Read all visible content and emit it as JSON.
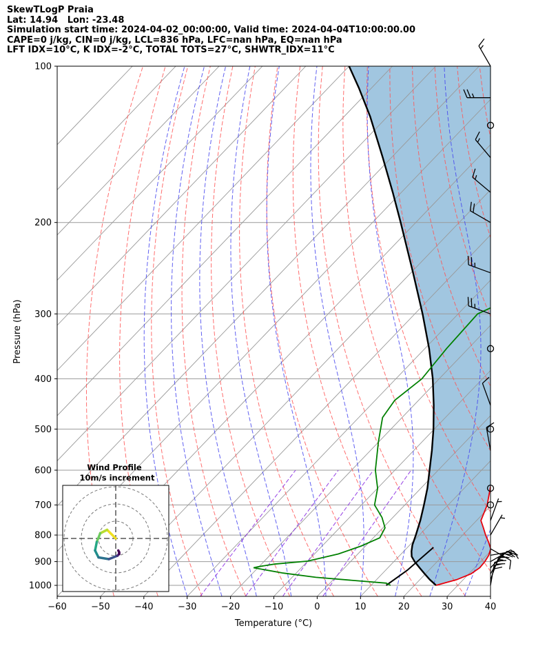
{
  "header": {
    "line1": "SkewTLogP Praia",
    "line2": "Lat: 14.94   Lon: -23.48",
    "line3": "Simulation start time: 2024-04-02_00:00:00, Valid time: 2024-04-04T10:00:00.00",
    "line4": "CAPE=0 j/kg, CIN=0 j/kg, LCL=836 hPa, LFC=nan hPa, EQ=nan hPa",
    "line5": "LFT IDX=10°C, K IDX=-2°C, TOTAL TOTS=27°C, SHWTR_IDX=11°C"
  },
  "chart_data": {
    "type": "line",
    "title": "SkewTLogP Praia",
    "xlabel": "Temperature (°C)",
    "ylabel": "Pressure (hPa)",
    "xlim": [
      -60,
      40
    ],
    "ylim": [
      1050,
      100
    ],
    "y_scale": "log",
    "x_ticks": [
      "−60",
      "−50",
      "−40",
      "−30",
      "−20",
      "−10",
      "0",
      "10",
      "20",
      "30",
      "40"
    ],
    "y_ticks": [
      "100",
      "200",
      "300",
      "400",
      "500",
      "600",
      "700",
      "800",
      "900",
      "1000"
    ],
    "grid": true,
    "colors": {
      "temperature": "#e8000b",
      "dewpoint": "#008000",
      "parcel": "#000000",
      "cape_shade": "#8ab8d8",
      "dry_adiabat": "#ff5555",
      "moist_adiabat": "#4444ee",
      "mixing_ratio": "#8a2be2",
      "isotherm": "#999999"
    },
    "series": [
      {
        "name": "temperature",
        "points": [
          [
            25.0,
            1000
          ],
          [
            28.5,
            975
          ],
          [
            30.5,
            950
          ],
          [
            31.2,
            925
          ],
          [
            31.0,
            900
          ],
          [
            30.5,
            875
          ],
          [
            29.5,
            850
          ],
          [
            27.5,
            825
          ],
          [
            25.3,
            800
          ],
          [
            23.2,
            775
          ],
          [
            21.0,
            750
          ],
          [
            19.0,
            700
          ],
          [
            16.0,
            650
          ],
          [
            12.9,
            600
          ],
          [
            10.5,
            550
          ],
          [
            8.0,
            500
          ],
          [
            6.5,
            450
          ],
          [
            4.0,
            400
          ],
          [
            0.0,
            350
          ],
          [
            -4.5,
            300
          ],
          [
            -8.5,
            250
          ],
          [
            -13.5,
            200
          ],
          [
            -20.5,
            175
          ],
          [
            -28.0,
            150
          ],
          [
            -36.5,
            125
          ],
          [
            -44.5,
            110
          ],
          [
            -50.8,
            100
          ]
        ]
      },
      {
        "name": "dewpoint",
        "points": [
          [
            14.5,
            1000
          ],
          [
            13.0,
            990
          ],
          [
            -4.5,
            965
          ],
          [
            -13.0,
            947
          ],
          [
            -21.0,
            925
          ],
          [
            -20.0,
            920
          ],
          [
            -17.0,
            910
          ],
          [
            -10.0,
            898
          ],
          [
            -4.5,
            870
          ],
          [
            -1.0,
            840
          ],
          [
            1.5,
            810
          ],
          [
            0.5,
            775
          ],
          [
            -2.5,
            740
          ],
          [
            -7.0,
            700
          ],
          [
            -10.0,
            650
          ],
          [
            -14.5,
            600
          ],
          [
            -20.0,
            530
          ],
          [
            -24.5,
            475
          ],
          [
            -25.5,
            440
          ],
          [
            -24.0,
            400
          ],
          [
            -25.0,
            350
          ],
          [
            -25.5,
            300
          ],
          [
            -19.0,
            270
          ],
          [
            -19.5,
            250
          ],
          [
            -23.0,
            225
          ],
          [
            -27.0,
            200
          ],
          [
            -32.5,
            175
          ],
          [
            -38.5,
            150
          ],
          [
            -45.0,
            135
          ],
          [
            -50.5,
            120
          ],
          [
            -55.0,
            110
          ],
          [
            -57.0,
            100
          ]
        ]
      },
      {
        "name": "parcel",
        "points": [
          [
            25.0,
            1000
          ],
          [
            22.3,
            975
          ],
          [
            19.8,
            950
          ],
          [
            17.3,
            925
          ],
          [
            14.8,
            900
          ],
          [
            13.0,
            880
          ],
          [
            11.8,
            860
          ],
          [
            10.6,
            836
          ],
          [
            9.2,
            800
          ],
          [
            7.0,
            750
          ],
          [
            4.4,
            700
          ],
          [
            1.5,
            650
          ],
          [
            -2.0,
            600
          ],
          [
            -5.8,
            550
          ],
          [
            -10.2,
            500
          ],
          [
            -15.4,
            450
          ],
          [
            -21.5,
            400
          ],
          [
            -29.0,
            350
          ],
          [
            -38.2,
            300
          ],
          [
            -49.5,
            250
          ],
          [
            -63.5,
            200
          ],
          [
            -72.0,
            175
          ],
          [
            -82.0,
            150
          ],
          [
            -94.0,
            125
          ],
          [
            -103.0,
            110
          ],
          [
            -110.0,
            100
          ]
        ]
      },
      {
        "name": "surface-path",
        "points": [
          [
            13.5,
            1000
          ],
          [
            15.0,
            935
          ],
          [
            16.0,
            845
          ]
        ]
      }
    ],
    "wind_barbs": [
      {
        "p": 1000,
        "dir": 10,
        "kt": 30
      },
      {
        "p": 975,
        "dir": 20,
        "kt": 30
      },
      {
        "p": 950,
        "dir": 30,
        "kt": 25
      },
      {
        "p": 925,
        "dir": 45,
        "kt": 25
      },
      {
        "p": 900,
        "dir": 60,
        "kt": 20
      },
      {
        "p": 875,
        "dir": 80,
        "kt": 15
      },
      {
        "p": 850,
        "dir": 120,
        "kt": 10
      },
      {
        "p": 800,
        "dir": 30,
        "kt": 5
      },
      {
        "p": 750,
        "dir": 20,
        "kt": 5
      },
      {
        "p": 700,
        "dir": 0,
        "kt": 0
      },
      {
        "p": 650,
        "dir": 0,
        "kt": 0
      },
      {
        "p": 550,
        "dir": 350,
        "kt": 10
      },
      {
        "p": 500,
        "dir": 0,
        "kt": 0
      },
      {
        "p": 450,
        "dir": 340,
        "kt": 10
      },
      {
        "p": 350,
        "dir": 0,
        "kt": 0
      },
      {
        "p": 300,
        "dir": 290,
        "kt": 25
      },
      {
        "p": 250,
        "dir": 290,
        "kt": 25
      },
      {
        "p": 200,
        "dir": 300,
        "kt": 20
      },
      {
        "p": 175,
        "dir": 310,
        "kt": 15
      },
      {
        "p": 150,
        "dir": 320,
        "kt": 15
      },
      {
        "p": 130,
        "dir": 0,
        "kt": 0
      },
      {
        "p": 115,
        "dir": 270,
        "kt": 25
      },
      {
        "p": 100,
        "dir": 330,
        "kt": 15
      }
    ],
    "hodograph": {
      "title": "Wind Profile",
      "subtitle": "10m/s increment",
      "rings_ms": [
        10,
        20,
        30
      ],
      "path": [
        [
          0,
          0
        ],
        [
          -5,
          5
        ],
        [
          -9,
          3
        ],
        [
          -11,
          -2
        ],
        [
          -12,
          -7
        ],
        [
          -10,
          -11
        ],
        [
          -4,
          -12
        ],
        [
          1,
          -10
        ],
        [
          2,
          -9
        ],
        [
          2,
          -8
        ],
        [
          1.5,
          -7
        ]
      ]
    }
  }
}
